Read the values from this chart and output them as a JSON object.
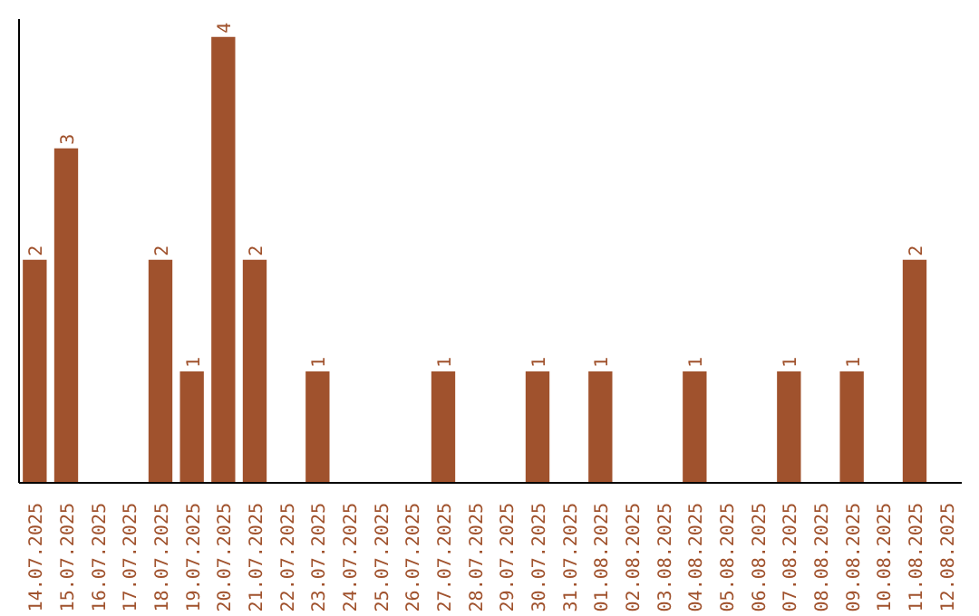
{
  "chart_data": {
    "type": "bar",
    "categories": [
      "14.07.2025",
      "15.07.2025",
      "16.07.2025",
      "17.07.2025",
      "18.07.2025",
      "19.07.2025",
      "20.07.2025",
      "21.07.2025",
      "22.07.2025",
      "23.07.2025",
      "24.07.2025",
      "25.07.2025",
      "26.07.2025",
      "27.07.2025",
      "28.07.2025",
      "29.07.2025",
      "30.07.2025",
      "31.07.2025",
      "01.08.2025",
      "02.08.2025",
      "03.08.2025",
      "04.08.2025",
      "05.08.2025",
      "06.08.2025",
      "07.08.2025",
      "08.08.2025",
      "09.08.2025",
      "10.08.2025",
      "11.08.2025",
      "12.08.2025"
    ],
    "values": [
      2,
      3,
      0,
      0,
      2,
      1,
      4,
      2,
      0,
      1,
      0,
      0,
      0,
      1,
      0,
      0,
      1,
      0,
      1,
      0,
      0,
      1,
      0,
      0,
      1,
      0,
      1,
      0,
      2,
      0
    ],
    "value_labels": [
      "2",
      "3",
      null,
      null,
      "2",
      "1",
      "4",
      "2",
      null,
      "1",
      null,
      null,
      null,
      "1",
      null,
      null,
      "1",
      null,
      "1",
      null,
      null,
      "1",
      null,
      null,
      "1",
      null,
      "1",
      null,
      "2",
      null
    ],
    "color": "#a0522d",
    "ylim": [
      0,
      4.16
    ],
    "tick_labels": "x",
    "grid": false
  }
}
